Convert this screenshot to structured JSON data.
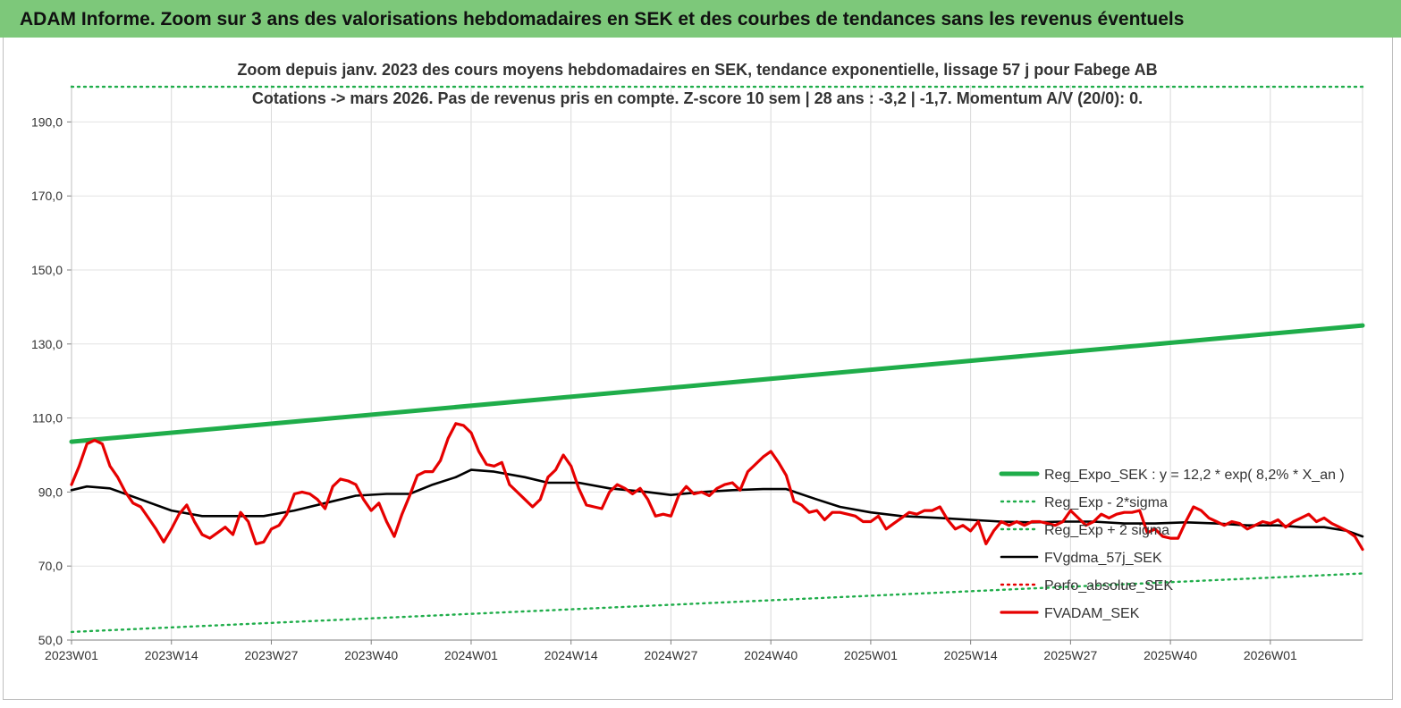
{
  "header": {
    "title": "ADAM Informe. Zoom sur 3 ans des valorisations hebdomadaires en SEK et des courbes de tendances sans les revenus éventuels"
  },
  "chart_data": {
    "type": "line",
    "subtitle_line1": "Zoom depuis janv. 2023 des cours moyens hebdomadaires en SEK, tendance exponentielle, lissage 57 j pour Fabege AB",
    "subtitle_line2": "Cotations -> mars 2026. Pas de revenus pris en compte. Z-score 10 sem | 28 ans : -3,2 | -1,7. Momentum A/V (20/0): 0.",
    "ylim": [
      50,
      200
    ],
    "yticks": [
      50,
      70,
      90,
      110,
      130,
      150,
      170,
      190
    ],
    "ytick_labels": [
      "50,0",
      "70,0",
      "90,0",
      "110,0",
      "130,0",
      "150,0",
      "170,0",
      "190,0"
    ],
    "x_weeks": 169,
    "xticks": [
      {
        "index": 0,
        "label": "2023W01"
      },
      {
        "index": 13,
        "label": "2023W14"
      },
      {
        "index": 26,
        "label": "2023W27"
      },
      {
        "index": 39,
        "label": "2023W40"
      },
      {
        "index": 52,
        "label": "2024W01"
      },
      {
        "index": 65,
        "label": "2024W14"
      },
      {
        "index": 78,
        "label": "2024W27"
      },
      {
        "index": 91,
        "label": "2024W40"
      },
      {
        "index": 104,
        "label": "2025W01"
      },
      {
        "index": 117,
        "label": "2025W14"
      },
      {
        "index": 130,
        "label": "2025W27"
      },
      {
        "index": 143,
        "label": "2025W40"
      },
      {
        "index": 156,
        "label": "2026W01"
      }
    ],
    "grid": true,
    "legend_position": "right",
    "series": [
      {
        "name": "Reg_Expo_SEK : y = 12,2 * exp( 8,2% *  X_an )",
        "color": "#1fad4a",
        "style": "solid-thick",
        "points": [
          [
            0,
            103.6
          ],
          [
            168,
            135.0
          ]
        ]
      },
      {
        "name": "Reg_Exp - 2*sigma",
        "color": "#1fad4a",
        "style": "dotted",
        "points": [
          [
            0,
            52.2
          ],
          [
            168,
            68.0
          ]
        ]
      },
      {
        "name": "Reg_Exp + 2 sigma",
        "color": "#1fad4a",
        "style": "dotted",
        "points": [
          [
            0,
            199.5
          ],
          [
            168,
            199.5
          ]
        ]
      },
      {
        "name": "FVgdma_57j_SEK",
        "color": "#000000",
        "style": "solid",
        "points": [
          [
            0,
            90.5
          ],
          [
            2,
            91.5
          ],
          [
            5,
            91
          ],
          [
            9,
            88
          ],
          [
            13,
            85
          ],
          [
            17,
            83.5
          ],
          [
            21,
            83.5
          ],
          [
            25,
            83.5
          ],
          [
            29,
            85
          ],
          [
            33,
            87
          ],
          [
            37,
            89
          ],
          [
            41,
            89.5
          ],
          [
            44,
            89.5
          ],
          [
            47,
            92
          ],
          [
            50,
            94
          ],
          [
            52,
            96
          ],
          [
            55,
            95.5
          ],
          [
            59,
            94
          ],
          [
            62,
            92.5
          ],
          [
            66,
            92.5
          ],
          [
            70,
            91
          ],
          [
            75,
            90
          ],
          [
            78,
            89.2
          ],
          [
            82,
            90
          ],
          [
            86,
            90.5
          ],
          [
            90,
            90.8
          ],
          [
            93,
            90.8
          ],
          [
            97,
            88
          ],
          [
            100,
            86
          ],
          [
            104,
            84.5
          ],
          [
            108,
            83.5
          ],
          [
            113,
            83
          ],
          [
            117,
            82.5
          ],
          [
            121,
            82
          ],
          [
            125,
            81.8
          ],
          [
            129,
            82
          ],
          [
            133,
            82
          ],
          [
            137,
            81.5
          ],
          [
            141,
            81.5
          ],
          [
            145,
            81.8
          ],
          [
            149,
            81.5
          ],
          [
            153,
            81
          ],
          [
            157,
            81
          ],
          [
            160,
            80.5
          ],
          [
            163,
            80.5
          ],
          [
            166,
            79.5
          ],
          [
            168,
            78
          ]
        ]
      },
      {
        "name": "Perfo_absolue_SEK",
        "color": "#e60000",
        "style": "dotted",
        "points": []
      },
      {
        "name": "FVADAM_SEK",
        "color": "#e60000",
        "style": "solid-thick",
        "points": [
          [
            0,
            92
          ],
          [
            1,
            97
          ],
          [
            2,
            103
          ],
          [
            3,
            104
          ],
          [
            4,
            103
          ],
          [
            5,
            97
          ],
          [
            6,
            94
          ],
          [
            7,
            90
          ],
          [
            8,
            87
          ],
          [
            9,
            86
          ],
          [
            10,
            83
          ],
          [
            11,
            80
          ],
          [
            12,
            76.5
          ],
          [
            13,
            80
          ],
          [
            14,
            84
          ],
          [
            15,
            86.5
          ],
          [
            16,
            82
          ],
          [
            17,
            78.5
          ],
          [
            18,
            77.5
          ],
          [
            19,
            79
          ],
          [
            20,
            80.5
          ],
          [
            21,
            78.5
          ],
          [
            22,
            84.5
          ],
          [
            23,
            82
          ],
          [
            24,
            76
          ],
          [
            25,
            76.5
          ],
          [
            26,
            80
          ],
          [
            27,
            81
          ],
          [
            28,
            84
          ],
          [
            29,
            89.5
          ],
          [
            30,
            90
          ],
          [
            31,
            89.5
          ],
          [
            32,
            88
          ],
          [
            33,
            85.5
          ],
          [
            34,
            91.5
          ],
          [
            35,
            93.5
          ],
          [
            36,
            93
          ],
          [
            37,
            92
          ],
          [
            38,
            88
          ],
          [
            39,
            85
          ],
          [
            40,
            87
          ],
          [
            41,
            82
          ],
          [
            42,
            78
          ],
          [
            43,
            84
          ],
          [
            44,
            89
          ],
          [
            45,
            94.5
          ],
          [
            46,
            95.5
          ],
          [
            47,
            95.5
          ],
          [
            48,
            98.5
          ],
          [
            49,
            104.5
          ],
          [
            50,
            108.5
          ],
          [
            51,
            108
          ],
          [
            52,
            106
          ],
          [
            53,
            101
          ],
          [
            54,
            97.5
          ],
          [
            55,
            97
          ],
          [
            56,
            98
          ],
          [
            57,
            92
          ],
          [
            58,
            90
          ],
          [
            59,
            88
          ],
          [
            60,
            86
          ],
          [
            61,
            88
          ],
          [
            62,
            94
          ],
          [
            63,
            96
          ],
          [
            64,
            100
          ],
          [
            65,
            97
          ],
          [
            66,
            91
          ],
          [
            67,
            86.5
          ],
          [
            68,
            86
          ],
          [
            69,
            85.5
          ],
          [
            70,
            90
          ],
          [
            71,
            92
          ],
          [
            72,
            91
          ],
          [
            73,
            89.5
          ],
          [
            74,
            91
          ],
          [
            75,
            88
          ],
          [
            76,
            83.5
          ],
          [
            77,
            84
          ],
          [
            78,
            83.5
          ],
          [
            79,
            89
          ],
          [
            80,
            91.5
          ],
          [
            81,
            89.5
          ],
          [
            82,
            90
          ],
          [
            83,
            89
          ],
          [
            84,
            91
          ],
          [
            85,
            92
          ],
          [
            86,
            92.5
          ],
          [
            87,
            90.5
          ],
          [
            88,
            95.5
          ],
          [
            89,
            97.5
          ],
          [
            90,
            99.5
          ],
          [
            91,
            101
          ],
          [
            92,
            98
          ],
          [
            93,
            94.5
          ],
          [
            94,
            87.5
          ],
          [
            95,
            86.5
          ],
          [
            96,
            84.5
          ],
          [
            97,
            85
          ],
          [
            98,
            82.5
          ],
          [
            99,
            84.5
          ],
          [
            100,
            84.5
          ],
          [
            101,
            84
          ],
          [
            102,
            83.5
          ],
          [
            103,
            82
          ],
          [
            104,
            82
          ],
          [
            105,
            83.5
          ],
          [
            106,
            80
          ],
          [
            107,
            81.5
          ],
          [
            108,
            83
          ],
          [
            109,
            84.5
          ],
          [
            110,
            84
          ],
          [
            111,
            85
          ],
          [
            112,
            85
          ],
          [
            113,
            86
          ],
          [
            114,
            82.5
          ],
          [
            115,
            80
          ],
          [
            116,
            81
          ],
          [
            117,
            79.5
          ],
          [
            118,
            82
          ],
          [
            119,
            76
          ],
          [
            120,
            79.5
          ],
          [
            121,
            82
          ],
          [
            122,
            81
          ],
          [
            123,
            82
          ],
          [
            124,
            81
          ],
          [
            125,
            82
          ],
          [
            126,
            82
          ],
          [
            127,
            81.5
          ],
          [
            128,
            81
          ],
          [
            129,
            82
          ],
          [
            130,
            85
          ],
          [
            131,
            83
          ],
          [
            132,
            81
          ],
          [
            133,
            82
          ],
          [
            134,
            84
          ],
          [
            135,
            83
          ],
          [
            136,
            84
          ],
          [
            137,
            84.5
          ],
          [
            138,
            84.5
          ],
          [
            139,
            85
          ],
          [
            140,
            79
          ],
          [
            141,
            80
          ],
          [
            142,
            78
          ],
          [
            143,
            77.5
          ],
          [
            144,
            77.5
          ],
          [
            145,
            82
          ],
          [
            146,
            86
          ],
          [
            147,
            85
          ],
          [
            148,
            83
          ],
          [
            149,
            82
          ],
          [
            150,
            81
          ],
          [
            151,
            82
          ],
          [
            152,
            81.5
          ],
          [
            153,
            80
          ],
          [
            154,
            81
          ],
          [
            155,
            82
          ],
          [
            156,
            81.5
          ],
          [
            157,
            82.5
          ],
          [
            158,
            80.5
          ],
          [
            159,
            82
          ],
          [
            160,
            83
          ],
          [
            161,
            84
          ],
          [
            162,
            82
          ],
          [
            163,
            83
          ],
          [
            164,
            81.5
          ],
          [
            165,
            80.5
          ],
          [
            166,
            79.5
          ],
          [
            167,
            78
          ],
          [
            168,
            74.5
          ]
        ]
      }
    ]
  }
}
